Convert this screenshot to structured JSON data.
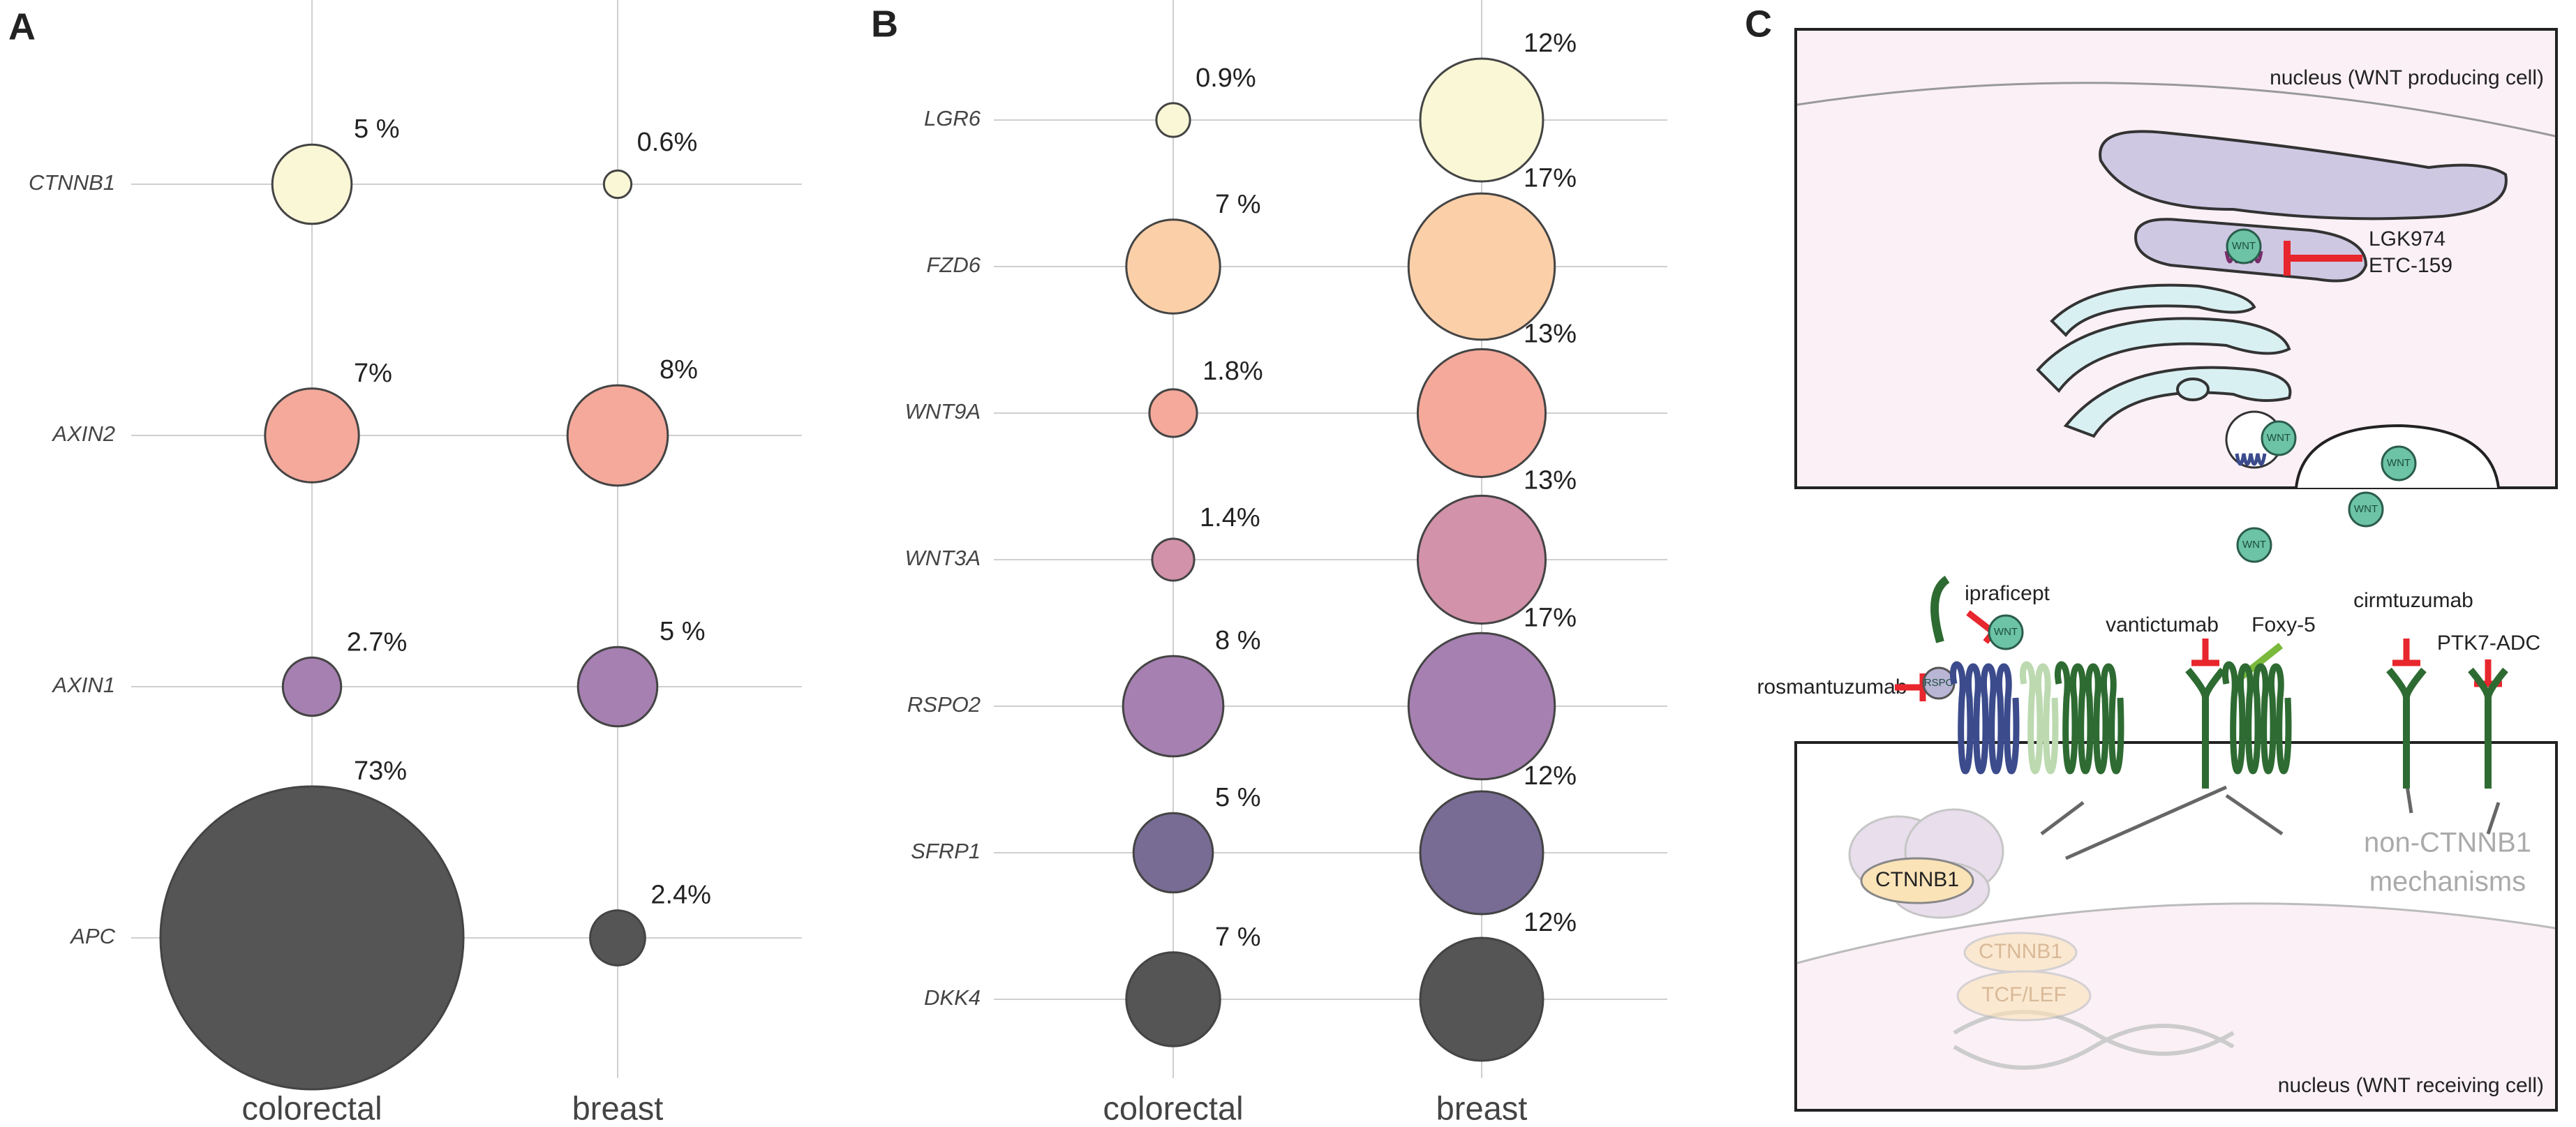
{
  "chart_data": [
    {
      "type": "bubble",
      "label": "A",
      "categories": [
        "CTNNB1",
        "AXIN2",
        "AXIN1",
        "APC"
      ],
      "colors": [
        "#faf7d6",
        "#f4a99b",
        "#a680b1",
        "#555555"
      ],
      "series": [
        {
          "name": "colorectal",
          "values": [
            5,
            7,
            2.7,
            73
          ],
          "value_labels": [
            "5 %",
            "7%",
            "2.7%",
            "73%"
          ]
        },
        {
          "name": "breast",
          "values": [
            0.6,
            8,
            5,
            2.4
          ],
          "value_labels": [
            "0.6%",
            "8%",
            "5 %",
            "2.4%"
          ]
        }
      ]
    },
    {
      "type": "bubble",
      "label": "B",
      "categories": [
        "LGR6",
        "FZD6",
        "WNT9A",
        "WNT3A",
        "RSPO2",
        "SFRP1",
        "DKK4"
      ],
      "colors": [
        "#faf7d6",
        "#fbcfa8",
        "#f4a99b",
        "#d292a9",
        "#a680b1",
        "#786c95",
        "#555555"
      ],
      "series": [
        {
          "name": "colorectal",
          "values": [
            0.9,
            7,
            1.8,
            1.4,
            8,
            5,
            7
          ],
          "value_labels": [
            "0.9%",
            "7 %",
            "1.8%",
            "1.4%",
            "8 %",
            "5 %",
            "7 %"
          ]
        },
        {
          "name": "breast",
          "values": [
            12,
            17,
            13,
            13,
            17,
            12,
            12
          ],
          "value_labels": [
            "12%",
            "17%",
            "13%",
            "13%",
            "17%",
            "12%",
            "12%"
          ]
        }
      ]
    }
  ],
  "diagram": {
    "label": "C",
    "top_nucleus": "nucleus (WNT producing cell)",
    "bottom_nucleus": "nucleus (WNT receiving cell)",
    "wnt": "WNT",
    "rspo": "RSPO",
    "porcupine_inhibitors": [
      "LGK974",
      "ETC-159"
    ],
    "drugs": [
      "ipraficept",
      "vantictumab",
      "Foxy-5",
      "cirmtuzumab",
      "PTK7-ADC",
      "rosmantuzumab"
    ],
    "ctnnb1": "CTNNB1",
    "tcf_lef": "TCF/LEF",
    "mechanisms": [
      "non-CTNNB1",
      "mechanisms"
    ]
  }
}
